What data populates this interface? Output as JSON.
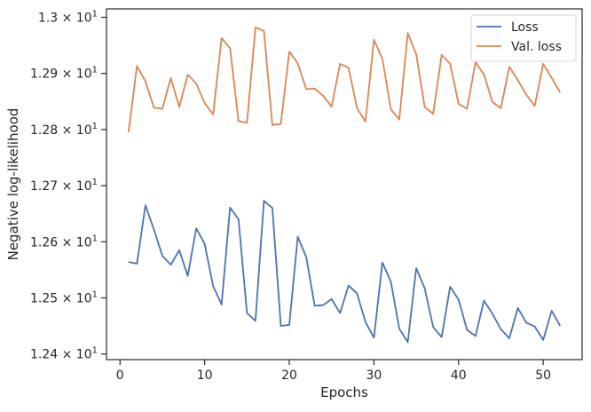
{
  "chart_data": {
    "type": "line",
    "xlabel": "Epochs",
    "ylabel": "Negative log-likelihood",
    "xlim": [
      -1.6,
      54.6
    ],
    "ylim": [
      12.39,
      13.015
    ],
    "xticks": [
      0,
      10,
      20,
      30,
      40,
      50
    ],
    "yticks": [
      {
        "value": 12.4,
        "mantissa": "1.24",
        "base": "10",
        "exp": "1"
      },
      {
        "value": 12.5,
        "mantissa": "1.25",
        "base": "10",
        "exp": "1"
      },
      {
        "value": 12.6,
        "mantissa": "1.26",
        "base": "10",
        "exp": "1"
      },
      {
        "value": 12.7,
        "mantissa": "1.27",
        "base": "10",
        "exp": "1"
      },
      {
        "value": 12.8,
        "mantissa": "1.28",
        "base": "10",
        "exp": "1"
      },
      {
        "value": 12.9,
        "mantissa": "1.29",
        "base": "10",
        "exp": "1"
      },
      {
        "value": 13.0,
        "mantissa": "1.3",
        "base": "10",
        "exp": "1"
      }
    ],
    "grid": false,
    "legend_position": "top-right",
    "x": [
      1,
      2,
      3,
      4,
      5,
      6,
      7,
      8,
      9,
      10,
      11,
      12,
      13,
      14,
      15,
      16,
      17,
      18,
      19,
      20,
      21,
      22,
      23,
      24,
      25,
      26,
      27,
      28,
      29,
      30,
      31,
      32,
      33,
      34,
      35,
      36,
      37,
      38,
      39,
      40,
      41,
      42,
      43,
      44,
      45,
      46,
      47,
      48,
      49,
      50,
      51,
      52
    ],
    "series": [
      {
        "name": "Loss",
        "color": "#4c72b0",
        "values": [
          12.564,
          12.561,
          12.665,
          12.622,
          12.575,
          12.559,
          12.585,
          12.539,
          12.624,
          12.596,
          12.521,
          12.488,
          12.661,
          12.64,
          12.473,
          12.459,
          12.673,
          12.66,
          12.45,
          12.452,
          12.609,
          12.573,
          12.486,
          12.487,
          12.498,
          12.473,
          12.522,
          12.508,
          12.457,
          12.429,
          12.563,
          12.529,
          12.445,
          12.421,
          12.553,
          12.517,
          12.448,
          12.43,
          12.52,
          12.497,
          12.443,
          12.432,
          12.495,
          12.472,
          12.444,
          12.428,
          12.482,
          12.456,
          12.449,
          12.425,
          12.477,
          12.45
        ]
      },
      {
        "name": "Val. loss",
        "color": "#dd8452",
        "values": [
          12.795,
          12.913,
          12.886,
          12.839,
          12.837,
          12.892,
          12.84,
          12.898,
          12.882,
          12.847,
          12.827,
          12.963,
          12.945,
          12.815,
          12.812,
          12.982,
          12.976,
          12.808,
          12.81,
          12.939,
          12.918,
          12.872,
          12.873,
          12.86,
          12.841,
          12.917,
          12.91,
          12.838,
          12.814,
          12.96,
          12.926,
          12.836,
          12.818,
          12.972,
          12.934,
          12.84,
          12.828,
          12.933,
          12.917,
          12.846,
          12.837,
          12.92,
          12.898,
          12.849,
          12.838,
          12.912,
          12.888,
          12.862,
          12.842,
          12.917,
          12.892,
          12.866
        ]
      }
    ]
  }
}
